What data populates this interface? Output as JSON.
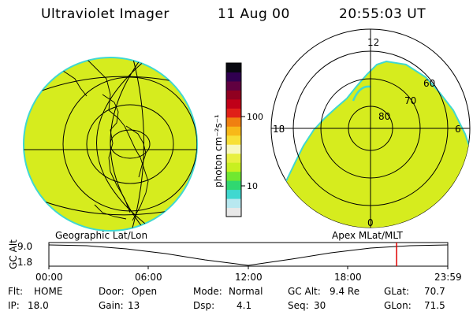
{
  "header": {
    "instrument": "Ultraviolet Imager",
    "date": "11 Aug 00",
    "time": "20:55:03 UT"
  },
  "globe_label": "Geographic Lat/Lon",
  "polar": {
    "label": "Apex MLat/MLT",
    "mlt_labels": [
      "12",
      "18",
      "6",
      "0"
    ],
    "mlat_labels": [
      "80",
      "70",
      "60"
    ]
  },
  "colorbar": {
    "unit": "photon cm⁻²s⁻¹",
    "ticks": [
      "100",
      "10"
    ],
    "colors": [
      "#e8e8e8",
      "#b8e8f0",
      "#40d8d0",
      "#30d870",
      "#70e830",
      "#c8f020",
      "#e8f040",
      "#f8f8c0",
      "#f8e038",
      "#f8b818",
      "#f08010",
      "#e02018",
      "#c00018",
      "#900020",
      "#600040",
      "#300050",
      "#080810"
    ]
  },
  "altitude_track": {
    "y_label": "GC Alt",
    "y_ticks": [
      "9.0",
      "1.8"
    ],
    "time_ticks": [
      "00:00",
      "06:00",
      "12:00",
      "18:00",
      "23:59"
    ],
    "current_marker_hours": 20.92
  },
  "status": {
    "row1": [
      {
        "key": "Flt:",
        "value": "HOME"
      },
      {
        "key": "Door:",
        "value": "Open"
      },
      {
        "key": "Mode:",
        "value": "Normal"
      },
      {
        "key": "GC Alt:",
        "value": "9.4 Re"
      },
      {
        "key": "GLat:",
        "value": "70.7"
      }
    ],
    "row2": [
      {
        "key": "IP:",
        "value": "18.0"
      },
      {
        "key": "Gain:",
        "value": "13"
      },
      {
        "key": "Dsp:",
        "value": "4.1"
      },
      {
        "key": "Seq:",
        "value": "30"
      },
      {
        "key": "GLon:",
        "value": "71.5"
      }
    ]
  },
  "colors": {
    "fill": "#d6ec1e",
    "edge": "#40d8d0",
    "marker": "#e00000"
  }
}
